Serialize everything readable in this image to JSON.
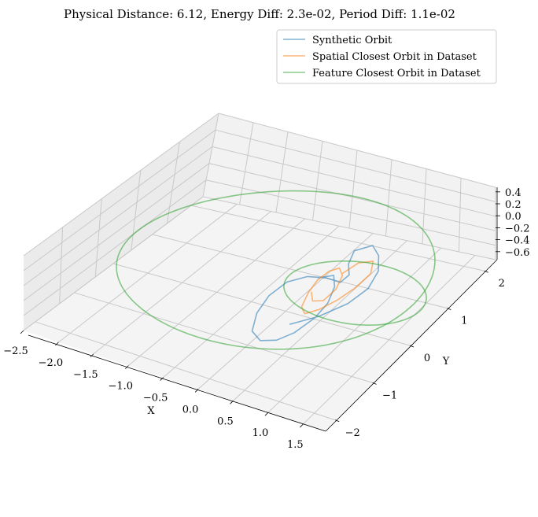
{
  "chart_data": {
    "type": "line3d",
    "title": "Physical Distance: 6.12, Energy Diff: 2.3e-02, Period Diff: 1.1e-02",
    "xlabel": "X",
    "ylabel": "Y",
    "zlabel": "",
    "xlim": [
      -2.5,
      1.8
    ],
    "ylim": [
      -2.3,
      2.3
    ],
    "zlim": [
      -0.7,
      0.45
    ],
    "x_ticks": [
      "−2.5",
      "−2.0",
      "−1.5",
      "−1.0",
      "−0.5",
      "0.0",
      "0.5",
      "1.0",
      "1.5"
    ],
    "y_ticks": [
      "−2",
      "−1",
      "0",
      "1",
      "2"
    ],
    "z_ticks": [
      "0.4",
      "0.2",
      "0.0",
      "−0.2",
      "−0.4",
      "−0.6"
    ],
    "legend_position": "top-right",
    "series": [
      {
        "name": "Synthetic Orbit",
        "color": "#1f77b4",
        "points": [
          [
            0.55,
            -0.9,
            0.0
          ],
          [
            0.75,
            -0.5,
            -0.05
          ],
          [
            0.9,
            0.0,
            -0.1
          ],
          [
            0.95,
            0.45,
            -0.1
          ],
          [
            0.88,
            0.85,
            -0.05
          ],
          [
            0.72,
            1.15,
            0.0
          ],
          [
            0.55,
            1.3,
            0.05
          ],
          [
            0.42,
            1.05,
            0.08
          ],
          [
            0.5,
            0.75,
            0.05
          ],
          [
            0.62,
            0.55,
            0.0
          ],
          [
            0.6,
            0.35,
            -0.02
          ],
          [
            0.4,
            0.35,
            0.0
          ],
          [
            0.18,
            0.25,
            0.02
          ],
          [
            0.02,
            0.0,
            0.02
          ],
          [
            -0.02,
            -0.4,
            0.0
          ],
          [
            0.05,
            -0.85,
            -0.02
          ],
          [
            0.2,
            -1.25,
            -0.05
          ],
          [
            0.4,
            -1.4,
            -0.05
          ],
          [
            0.58,
            -1.3,
            -0.03
          ],
          [
            0.7,
            -1.05,
            0.0
          ],
          [
            0.75,
            -0.6,
            0.0
          ],
          [
            0.72,
            -0.2,
            0.0
          ],
          [
            0.6,
            0.2,
            0.0
          ],
          [
            0.45,
            0.45,
            0.0
          ],
          [
            0.3,
            0.3,
            0.0
          ]
        ]
      },
      {
        "name": "Spatial Closest Orbit in Dataset",
        "color": "#ff7f0e",
        "points": [
          [
            0.55,
            0.5,
            0.05
          ],
          [
            0.62,
            0.8,
            0.08
          ],
          [
            0.75,
            0.95,
            0.05
          ],
          [
            0.85,
            0.7,
            0.0
          ],
          [
            0.82,
            0.35,
            -0.05
          ],
          [
            0.75,
            0.0,
            -0.08
          ],
          [
            0.65,
            -0.3,
            -0.1
          ],
          [
            0.55,
            -0.5,
            -0.08
          ],
          [
            0.45,
            -0.4,
            -0.05
          ],
          [
            0.38,
            -0.1,
            0.0
          ],
          [
            0.35,
            0.2,
            0.05
          ],
          [
            0.38,
            0.45,
            0.07
          ],
          [
            0.45,
            0.6,
            0.05
          ],
          [
            0.55,
            0.5,
            0.0
          ],
          [
            0.62,
            0.2,
            -0.05
          ],
          [
            0.6,
            -0.1,
            -0.08
          ],
          [
            0.5,
            -0.2,
            -0.05
          ],
          [
            0.4,
            -0.05,
            0.0
          ]
        ]
      },
      {
        "name": "Feature Closest Orbit in Dataset",
        "color": "#2ca02c",
        "ellipses": [
          {
            "cx": -0.3,
            "cy": 0.3,
            "rx": 2.0,
            "ry": 2.1,
            "z": 0.0
          },
          {
            "cx": 0.9,
            "cy": 0.2,
            "rx": 0.95,
            "ry": 0.75,
            "z": 0.0
          }
        ]
      }
    ]
  }
}
